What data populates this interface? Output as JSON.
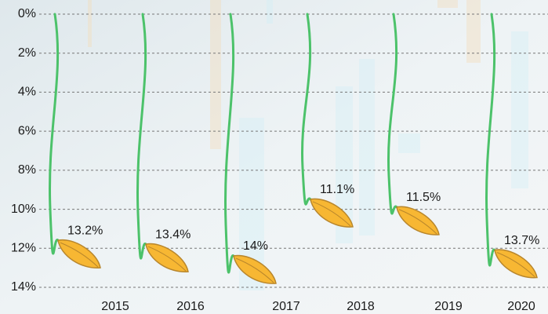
{
  "chart_data": {
    "type": "pictogram",
    "categories": [
      "2015",
      "2016",
      "2017",
      "2018",
      "2019",
      "2020"
    ],
    "values": [
      13.2,
      13.4,
      14,
      11.1,
      11.5,
      13.7
    ],
    "value_labels": [
      "13.2%",
      "13.4%",
      "14%",
      "11.1%",
      "11.5%",
      "13.7%"
    ],
    "color": "#f7b733",
    "ylim": [
      0,
      14
    ],
    "y_inverted": true,
    "yticks": [
      {
        "value": 0,
        "label": "0%"
      },
      {
        "value": 2,
        "label": "2%"
      },
      {
        "value": 4,
        "label": "4%"
      },
      {
        "value": 6,
        "label": "6%"
      },
      {
        "value": 8,
        "label": "8%"
      },
      {
        "value": 10,
        "label": "10%"
      },
      {
        "value": 12,
        "label": "12%"
      },
      {
        "value": 14,
        "label": "14%"
      }
    ],
    "grid": true
  }
}
